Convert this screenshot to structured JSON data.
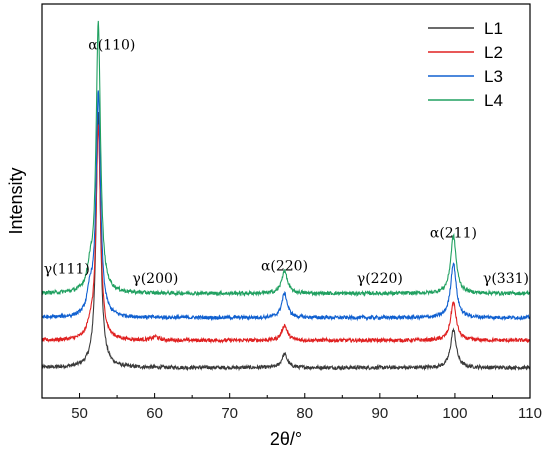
{
  "chart_data": {
    "type": "line",
    "title": "",
    "xlabel": "2θ/°",
    "ylabel": "Intensity",
    "xlim": [
      45,
      110
    ],
    "xticks": [
      "50",
      "60",
      "70",
      "80",
      "90",
      "100",
      "110"
    ],
    "grid": false,
    "legend_position": "top-right",
    "series": [
      {
        "name": "L1",
        "color": "#3a3a3a",
        "baseline": 1.0,
        "peaks": [
          {
            "x": 52.5,
            "h": 8.4
          },
          {
            "x": 77.3,
            "h": 0.45
          },
          {
            "x": 99.8,
            "h": 1.25
          }
        ]
      },
      {
        "name": "L2",
        "color": "#e02020",
        "baseline": 1.9,
        "peaks": [
          {
            "x": 51.4,
            "h": 0.35
          },
          {
            "x": 52.5,
            "h": 7.05
          },
          {
            "x": 60.1,
            "h": 0.12
          },
          {
            "x": 77.3,
            "h": 0.5
          },
          {
            "x": 99.8,
            "h": 1.25
          }
        ]
      },
      {
        "name": "L3",
        "color": "#1060d0",
        "baseline": 2.65,
        "peaks": [
          {
            "x": 51.4,
            "h": 0.75
          },
          {
            "x": 52.5,
            "h": 7.35
          },
          {
            "x": 77.3,
            "h": 0.8
          },
          {
            "x": 99.8,
            "h": 1.8
          }
        ]
      },
      {
        "name": "L4",
        "color": "#20a060",
        "baseline": 3.45,
        "peaks": [
          {
            "x": 51.4,
            "h": 0.65
          },
          {
            "x": 52.5,
            "h": 8.85
          },
          {
            "x": 77.3,
            "h": 0.75
          },
          {
            "x": 99.8,
            "h": 1.9
          }
        ]
      }
    ],
    "annotations": [
      {
        "text": "α(110)",
        "x": 54.3,
        "y": 11.5
      },
      {
        "text": "γ(111)",
        "x": 48.3,
        "y": 4.1
      },
      {
        "text": "γ(200)",
        "x": 60.1,
        "y": 3.8
      },
      {
        "text": "α(220)",
        "x": 77.3,
        "y": 4.2
      },
      {
        "text": "γ(220)",
        "x": 90.0,
        "y": 3.8
      },
      {
        "text": "α(211)",
        "x": 99.8,
        "y": 5.3
      },
      {
        "text": "γ(331)",
        "x": 106.8,
        "y": 3.8
      }
    ]
  }
}
